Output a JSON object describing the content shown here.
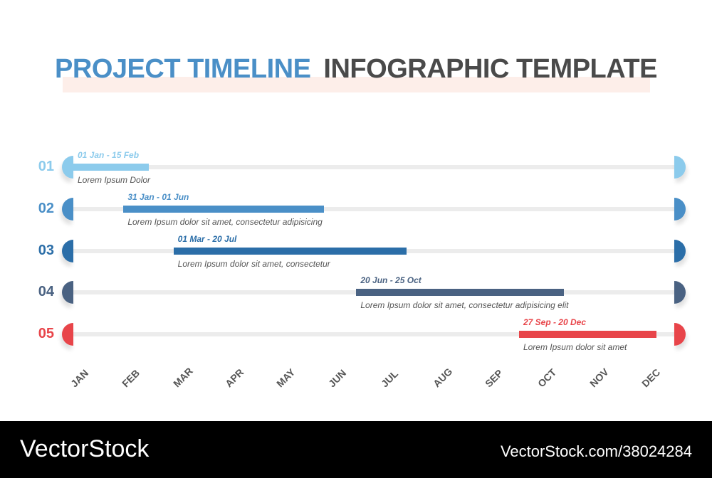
{
  "title": {
    "part1": "PROJECT TIMELINE",
    "part2": "INFOGRAPHIC TEMPLATE"
  },
  "colors": {
    "row1": "#8ccbec",
    "row2": "#4a8fc7",
    "row3": "#2b6ea8",
    "row4": "#4a6282",
    "row5": "#e8454a"
  },
  "rows": [
    {
      "num": "01",
      "dates": "01 Jan - 15 Feb",
      "desc": "Lorem Ipsum Dolor",
      "start_month": 0,
      "end_month": 1.5
    },
    {
      "num": "02",
      "dates": "31 Jan - 01 Jun",
      "desc": "Lorem Ipsum dolor sit amet, consectetur adipisicing",
      "start_month": 1.0,
      "end_month": 5.0
    },
    {
      "num": "03",
      "dates": "01 Mar - 20 Jul",
      "desc": "Lorem Ipsum dolor sit amet, consectetur",
      "start_month": 2.0,
      "end_month": 6.65
    },
    {
      "num": "04",
      "dates": "20 Jun - 25 Oct",
      "desc": "Lorem Ipsum dolor sit amet, consectetur adipisicing elit",
      "start_month": 5.65,
      "end_month": 9.8
    },
    {
      "num": "05",
      "dates": "27 Sep - 20 Dec",
      "desc": "Lorem Ipsum dolor sit amet",
      "start_month": 8.9,
      "end_month": 11.65
    }
  ],
  "months": [
    "JAN",
    "FEB",
    "MAR",
    "APR",
    "MAY",
    "JUN",
    "JUL",
    "AUG",
    "SEP",
    "OCT",
    "NOV",
    "DEC"
  ],
  "footer": {
    "logo": "VectorStock",
    "url": "VectorStock.com/38024284"
  }
}
